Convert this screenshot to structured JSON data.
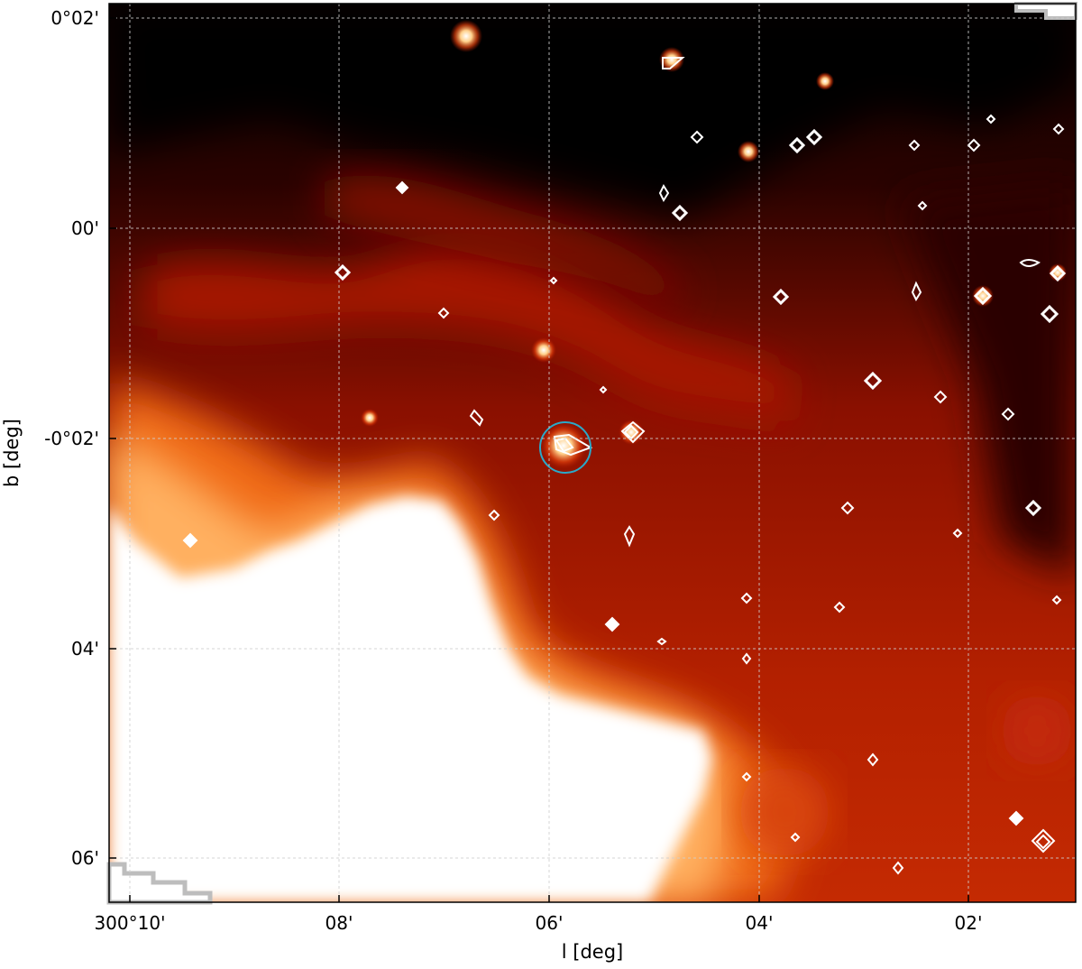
{
  "chart_data": {
    "type": "image",
    "xlabel": "l [deg]",
    "ylabel": "b [deg]",
    "x_ticks": [
      "300°10'",
      "08'",
      "06'",
      "04'",
      "02'"
    ],
    "y_ticks": [
      "0°02'",
      "00'",
      "-0°02'",
      "04'",
      "06'"
    ],
    "grid": "on",
    "colormap": "hot",
    "highlight_circle": {
      "color": "#2aa9c9"
    },
    "contours": {
      "color": "#ffffff"
    }
  }
}
